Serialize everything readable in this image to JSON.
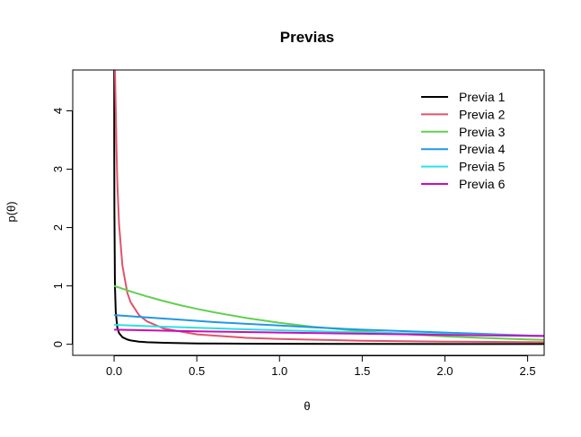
{
  "chart_data": {
    "type": "line",
    "title": "Previas",
    "xlabel": "θ",
    "ylabel": "p(θ)",
    "xlim": [
      -0.25,
      2.6
    ],
    "ylim": [
      -0.19,
      4.7
    ],
    "x_ticks": [
      "0.0",
      "0.5",
      "1.0",
      "1.5",
      "2.0",
      "2.5"
    ],
    "x_tick_values": [
      0,
      0.5,
      1.0,
      1.5,
      2.0,
      2.5
    ],
    "y_ticks": [
      "0",
      "1",
      "2",
      "3",
      "4"
    ],
    "y_tick_values": [
      0,
      1,
      2,
      3,
      4
    ],
    "legend_position": "top-right",
    "grid": false,
    "series": [
      {
        "name": "Previa 1",
        "color": "#000000",
        "x": [
          0.0006,
          0.001,
          0.002,
          0.005,
          0.01,
          0.02,
          0.03,
          0.05,
          0.08,
          0.1,
          0.15,
          0.2,
          0.3,
          0.5,
          0.8,
          1.0,
          1.5,
          2.0,
          2.6
        ],
        "y": [
          4.7,
          3.5,
          2.3,
          1.0,
          0.55,
          0.28,
          0.19,
          0.12,
          0.08,
          0.065,
          0.045,
          0.035,
          0.025,
          0.015,
          0.01,
          0.008,
          0.005,
          0.004,
          0.003
        ]
      },
      {
        "name": "Previa 2",
        "color": "#DF536B",
        "x": [
          0.005,
          0.01,
          0.015,
          0.02,
          0.03,
          0.05,
          0.08,
          0.1,
          0.15,
          0.2,
          0.3,
          0.5,
          0.8,
          1.0,
          1.5,
          2.0,
          2.6
        ],
        "y": [
          4.7,
          4.0,
          3.3,
          2.75,
          2.05,
          1.35,
          0.88,
          0.72,
          0.5,
          0.39,
          0.27,
          0.17,
          0.11,
          0.09,
          0.06,
          0.045,
          0.035
        ]
      },
      {
        "name": "Previa 3",
        "color": "#61D04F",
        "x": [
          0.0,
          0.1,
          0.2,
          0.3,
          0.4,
          0.5,
          0.6,
          0.8,
          1.0,
          1.2,
          1.5,
          1.8,
          2.0,
          2.2,
          2.5,
          2.6
        ],
        "y": [
          1.0,
          0.905,
          0.819,
          0.741,
          0.67,
          0.607,
          0.549,
          0.449,
          0.368,
          0.301,
          0.223,
          0.165,
          0.135,
          0.111,
          0.082,
          0.074
        ]
      },
      {
        "name": "Previa 4",
        "color": "#2297E6",
        "x": [
          0.0,
          0.2,
          0.4,
          0.6,
          0.8,
          1.0,
          1.2,
          1.5,
          2.0,
          2.5,
          2.6
        ],
        "y": [
          0.5,
          0.46,
          0.42,
          0.38,
          0.35,
          0.32,
          0.29,
          0.25,
          0.2,
          0.15,
          0.145
        ]
      },
      {
        "name": "Previa 5",
        "color": "#28E2E5",
        "x": [
          0.0,
          0.25,
          0.5,
          0.75,
          1.0,
          1.25,
          1.5,
          1.75,
          2.0,
          2.25,
          2.5,
          2.6
        ],
        "y": [
          0.333,
          0.306,
          0.282,
          0.26,
          0.24,
          0.22,
          0.203,
          0.187,
          0.172,
          0.158,
          0.146,
          0.14
        ]
      },
      {
        "name": "Previa 6",
        "color": "#CD0BBC",
        "x": [
          0.0,
          0.5,
          1.0,
          1.5,
          2.0,
          2.5,
          2.6
        ],
        "y": [
          0.25,
          0.22,
          0.2,
          0.18,
          0.16,
          0.145,
          0.14
        ]
      }
    ]
  }
}
